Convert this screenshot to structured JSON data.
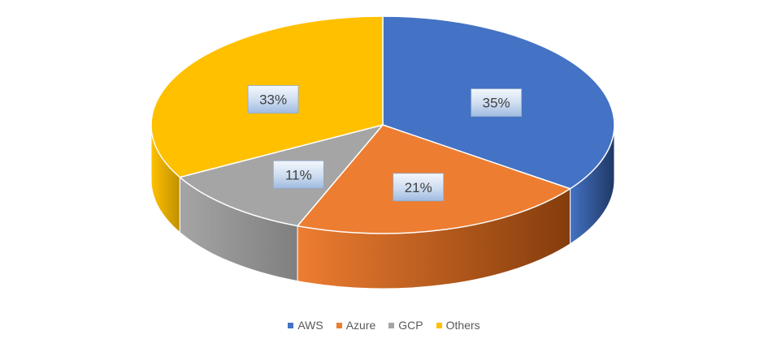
{
  "chart_data": {
    "type": "pie",
    "title": "",
    "categories": [
      "AWS",
      "Azure",
      "GCP",
      "Others"
    ],
    "values": [
      35,
      21,
      11,
      33
    ],
    "data_labels": [
      "35%",
      "21%",
      "11%",
      "33%"
    ],
    "colors": [
      "#4472C4",
      "#ED7D31",
      "#A5A5A5",
      "#FFC000"
    ],
    "side_colors": [
      "#1F3864",
      "#843C0C",
      "#7F7F7F",
      "#BF9000"
    ],
    "legend_position": "bottom",
    "style": "3d"
  }
}
